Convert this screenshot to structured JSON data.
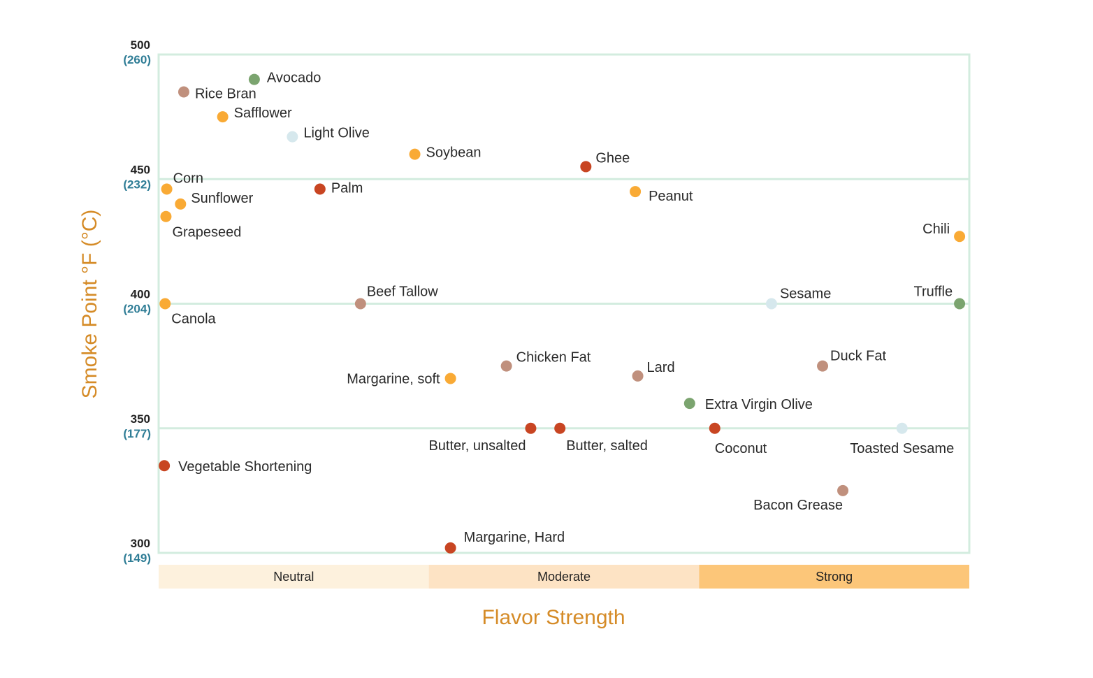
{
  "chart_data": {
    "type": "scatter",
    "xlabel": "Flavor Strength",
    "ylabel": "Smoke Point °F (°C)",
    "ylim": [
      300,
      500
    ],
    "xlim": [
      0,
      100
    ],
    "grid": true,
    "y_ticks": [
      {
        "f": "500",
        "c": "(260)",
        "value": 500
      },
      {
        "f": "450",
        "c": "(232)",
        "value": 450
      },
      {
        "f": "400",
        "c": "(204)",
        "value": 400
      },
      {
        "f": "350",
        "c": "(177)",
        "value": 350
      },
      {
        "f": "300",
        "c": "(149)",
        "value": 300
      }
    ],
    "flavor_bands": [
      {
        "label": "Neutral",
        "from": 0,
        "to": 33.33,
        "color": "#fdf1dd"
      },
      {
        "label": "Moderate",
        "from": 33.33,
        "to": 66.67,
        "color": "#fde3c4"
      },
      {
        "label": "Strong",
        "from": 66.67,
        "to": 100,
        "color": "#fcc679"
      }
    ],
    "colors": {
      "orange": "#f9aa35",
      "red": "#c84522",
      "tan": "#c0907d",
      "green": "#7ba46f",
      "lightblue": "#d6e8ed",
      "grid": "#d3ecdf",
      "ylabel": "#d58b27",
      "xlabel": "#d58b27"
    },
    "points": [
      {
        "name": "Avocado",
        "x": 11.8,
        "y": 490,
        "color": "green"
      },
      {
        "name": "Rice Bran",
        "x": 3.1,
        "y": 485,
        "color": "tan"
      },
      {
        "name": "Safflower",
        "x": 7.9,
        "y": 475,
        "color": "orange"
      },
      {
        "name": "Light Olive",
        "x": 16.5,
        "y": 467,
        "color": "lightblue"
      },
      {
        "name": "Soybean",
        "x": 31.6,
        "y": 460,
        "color": "orange"
      },
      {
        "name": "Ghee",
        "x": 52.7,
        "y": 455,
        "color": "red"
      },
      {
        "name": "Corn",
        "x": 1.0,
        "y": 446,
        "color": "orange"
      },
      {
        "name": "Palm",
        "x": 19.9,
        "y": 446,
        "color": "red"
      },
      {
        "name": "Peanut",
        "x": 58.8,
        "y": 445,
        "color": "orange"
      },
      {
        "name": "Sunflower",
        "x": 2.7,
        "y": 440,
        "color": "orange"
      },
      {
        "name": "Grapeseed",
        "x": 0.9,
        "y": 435,
        "color": "orange"
      },
      {
        "name": "Chili",
        "x": 98.8,
        "y": 427,
        "color": "orange"
      },
      {
        "name": "Canola",
        "x": 0.8,
        "y": 400,
        "color": "orange"
      },
      {
        "name": "Beef Tallow",
        "x": 24.9,
        "y": 400,
        "color": "tan"
      },
      {
        "name": "Sesame",
        "x": 75.6,
        "y": 400,
        "color": "lightblue"
      },
      {
        "name": "Truffle",
        "x": 98.8,
        "y": 400,
        "color": "green"
      },
      {
        "name": "Chicken Fat",
        "x": 42.9,
        "y": 375,
        "color": "tan"
      },
      {
        "name": "Duck Fat",
        "x": 81.9,
        "y": 375,
        "color": "tan"
      },
      {
        "name": "Lard",
        "x": 59.1,
        "y": 371,
        "color": "tan"
      },
      {
        "name": "Margarine, soft",
        "x": 36.0,
        "y": 370,
        "color": "orange"
      },
      {
        "name": "Extra Virgin Olive",
        "x": 65.5,
        "y": 360,
        "color": "green"
      },
      {
        "name": "Butter, unsalted",
        "x": 45.9,
        "y": 350,
        "color": "red"
      },
      {
        "name": "Butter, salted",
        "x": 49.5,
        "y": 350,
        "color": "red"
      },
      {
        "name": "Coconut",
        "x": 68.6,
        "y": 350,
        "color": "red"
      },
      {
        "name": "Toasted Sesame",
        "x": 91.7,
        "y": 350,
        "color": "lightblue"
      },
      {
        "name": "Vegetable Shortening",
        "x": 0.7,
        "y": 335,
        "color": "red"
      },
      {
        "name": "Bacon Grease",
        "x": 84.4,
        "y": 325,
        "color": "tan"
      },
      {
        "name": "Margarine, Hard",
        "x": 36.0,
        "y": 302,
        "color": "red"
      }
    ]
  }
}
